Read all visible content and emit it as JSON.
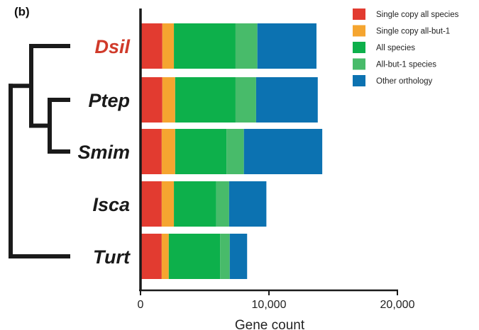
{
  "panel_label": "(b)",
  "chart_data": {
    "type": "bar",
    "orientation": "horizontal",
    "stacked": true,
    "categories": [
      "Dsil",
      "Ptep",
      "Smim",
      "Isca",
      "Turt"
    ],
    "highlighted_category": "Dsil",
    "highlight_color": "#d03a2a",
    "label_color": "#1a1a1a",
    "series": [
      {
        "name": "Single copy all species",
        "color": "#e23b30",
        "values": [
          1700,
          1700,
          1650,
          1650,
          1650
        ]
      },
      {
        "name": "Single copy all-but-1",
        "color": "#f5a530",
        "values": [
          900,
          1000,
          1050,
          950,
          550
        ]
      },
      {
        "name": "All species",
        "color": "#0db04b",
        "values": [
          4800,
          4700,
          4000,
          3300,
          4000
        ]
      },
      {
        "name": "All-but-1 species",
        "color": "#48bb6a",
        "values": [
          1700,
          1600,
          1350,
          1000,
          750
        ]
      },
      {
        "name": "Other orthology",
        "color": "#0c72b1",
        "values": [
          4600,
          4800,
          6100,
          2900,
          1350
        ]
      }
    ],
    "xlabel": "Gene count",
    "xlim": [
      0,
      20000
    ],
    "xticks": [
      0,
      10000,
      20000
    ],
    "xtick_labels": [
      "0",
      "10,000",
      "20,000"
    ],
    "grid": false,
    "legend_position": "top-right",
    "tree": {
      "type": "cladogram",
      "position": "left",
      "topology": "((Dsil,(Ptep,Smim)),(Isca,Turt))",
      "color": "#1a1a1a"
    }
  }
}
